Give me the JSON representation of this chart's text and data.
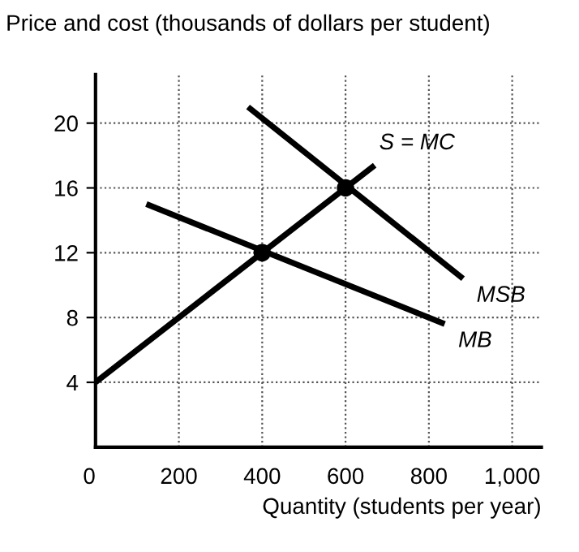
{
  "chart_data": {
    "type": "line",
    "ylabel": "Price and cost (thousands of dollars per student)",
    "xlabel": "Quantity (students per year)",
    "series": [
      {
        "name": "S = MC",
        "color": "#000000",
        "x": [
          0,
          670
        ],
        "values": [
          4,
          17.4
        ]
      },
      {
        "name": "MSB",
        "color": "#000000",
        "x": [
          366,
          882
        ],
        "values": [
          21,
          10.4
        ]
      },
      {
        "name": "MB",
        "color": "#000000",
        "x": [
          122,
          838
        ],
        "values": [
          15,
          7.6
        ]
      },
      {
        "type": "scatter",
        "color": "#000000",
        "x": [
          400,
          600
        ],
        "values": [
          12,
          16
        ]
      }
    ],
    "xlim": [
      0,
      1070
    ],
    "ylim": [
      0,
      23
    ],
    "xticks": [
      0,
      200,
      400,
      600,
      800,
      {
        "value": 1000,
        "label": "1,000"
      }
    ],
    "yticks": [
      4,
      8,
      12,
      16,
      20
    ],
    "grid": true,
    "line_style": "solid"
  }
}
